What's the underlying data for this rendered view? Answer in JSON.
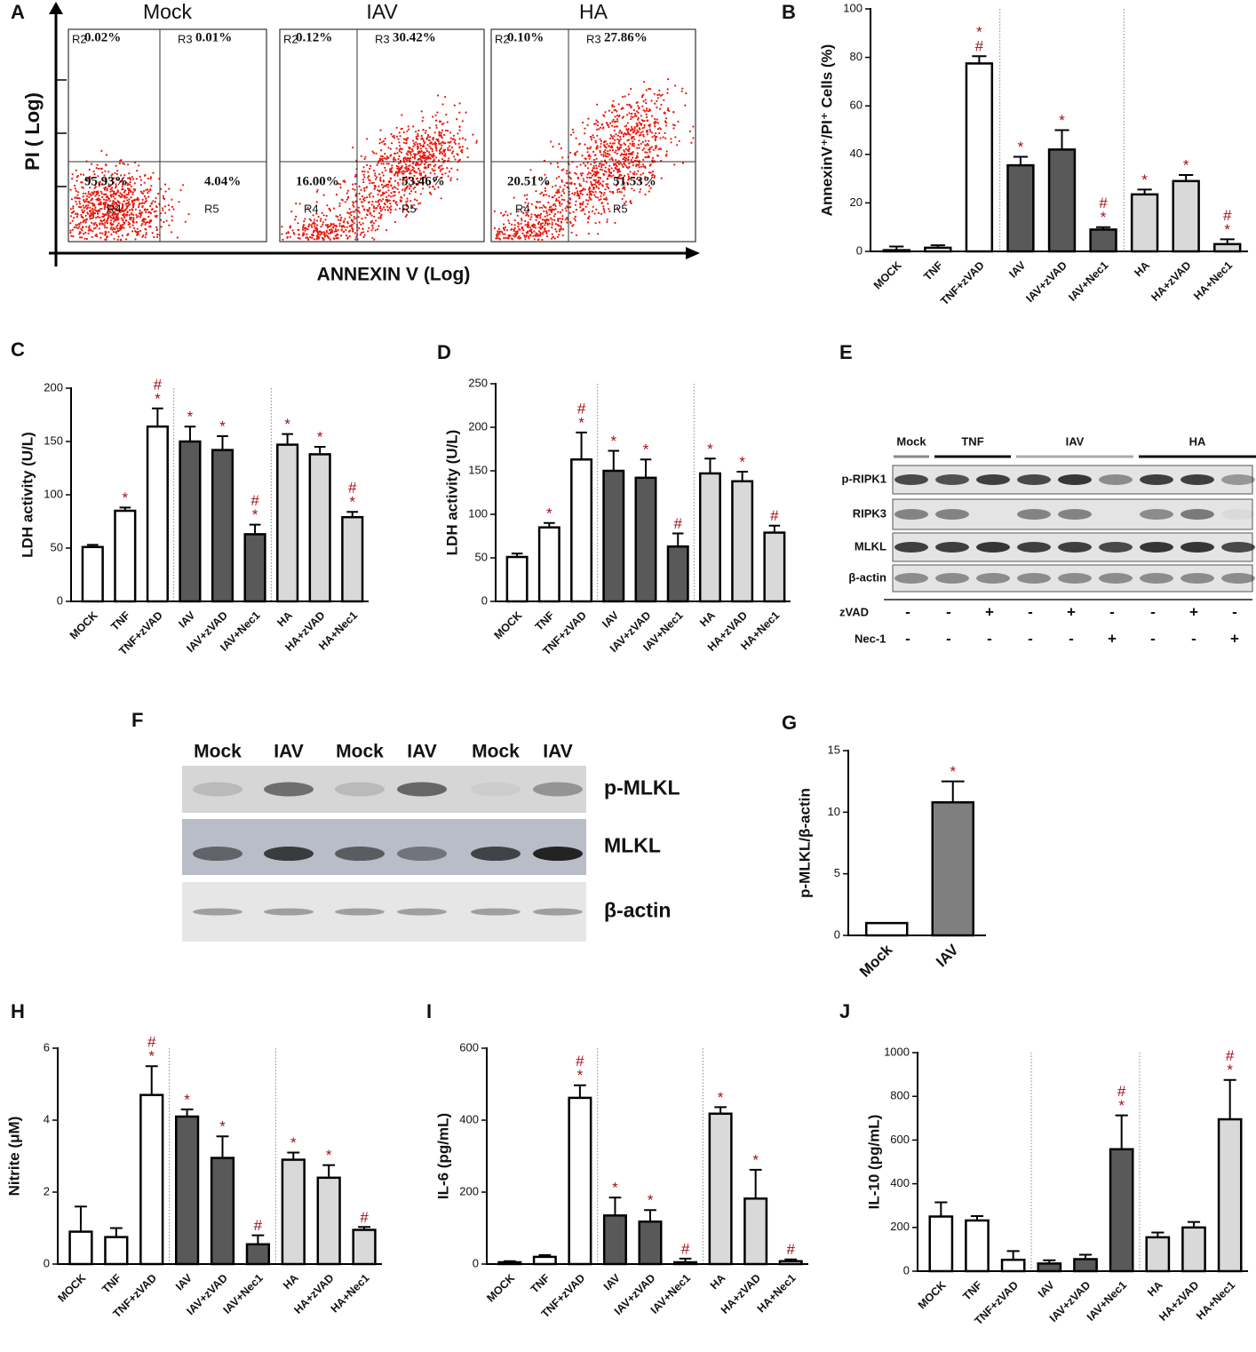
{
  "panel_labels": [
    "A",
    "B",
    "C",
    "D",
    "E",
    "F",
    "G",
    "H",
    "I",
    "J"
  ],
  "flow": {
    "ylabel": "PI ( Log)",
    "xlabel": "ANNEXIN V (Log)",
    "plots": [
      {
        "title": "Mock",
        "regions": [
          "R2",
          "R3",
          "R4",
          "R5"
        ],
        "percents": [
          "0.02%",
          "0.01%",
          "95.93%",
          "4.04%"
        ]
      },
      {
        "title": "IAV",
        "regions": [
          "R2",
          "R3",
          "R4",
          "R5"
        ],
        "percents": [
          "0.12%",
          "30.42%",
          "16.00%",
          "53.46%"
        ]
      },
      {
        "title": "HA",
        "regions": [
          "R2",
          "R3",
          "R4",
          "R5"
        ],
        "percents": [
          "0.10%",
          "27.86%",
          "20.51%",
          "51.53%"
        ]
      }
    ]
  },
  "blot_e": {
    "groups": [
      "Mock",
      "TNF",
      "IAV",
      "HA"
    ],
    "rows": [
      "p-RIPK1",
      "RIPK3",
      "MLKL",
      "β-actin"
    ],
    "treatments": [
      {
        "name": "zVAD",
        "signs": [
          "-",
          "-",
          "+",
          "-",
          "+",
          "-",
          "-",
          "+",
          "-"
        ]
      },
      {
        "name": "Nec-1",
        "signs": [
          "-",
          "-",
          "-",
          "-",
          "-",
          "+",
          "-",
          "-",
          "+"
        ]
      }
    ]
  },
  "blot_f": {
    "lanes": [
      "Mock",
      "IAV",
      "Mock",
      "IAV",
      "Mock",
      "IAV"
    ],
    "rows": [
      "p-MLKL",
      "MLKL",
      "β-actin"
    ]
  },
  "chart_data": [
    {
      "type": "bar",
      "ylabel": "AnnexinV⁺/PI⁺ Cells (%)",
      "categories": [
        "MOCK",
        "TNF",
        "TNF+zVAD",
        "IAV",
        "IAV+zVAD",
        "IAV+Nec1",
        "HA",
        "HA+zVAD",
        "HA+Nec1"
      ],
      "values": [
        0.5,
        1.5,
        77.5,
        35.5,
        42,
        9,
        23.5,
        29,
        3
      ],
      "errors": [
        1.5,
        1,
        3,
        3.5,
        8,
        1,
        2,
        2.5,
        2
      ],
      "colors": [
        "#ffffff",
        "#ffffff",
        "#ffffff",
        "#595959",
        "#595959",
        "#595959",
        "#d9d9d9",
        "#d9d9d9",
        "#d9d9d9"
      ],
      "annotations": [
        null,
        null,
        [
          "*",
          "#"
        ],
        [
          "*"
        ],
        [
          "*"
        ],
        [
          "#",
          "*"
        ],
        [
          "*"
        ],
        [
          "*"
        ],
        [
          "#",
          "*"
        ]
      ],
      "annotation_color": "#a50f15",
      "separators": true,
      "ylim": [
        0,
        100
      ],
      "yticks": [
        0,
        20,
        40,
        60,
        80,
        100
      ]
    },
    {
      "type": "bar",
      "ylabel": "LDH activity (U/L)",
      "categories": [
        "MOCK",
        "TNF",
        "TNF+zVAD",
        "IAV",
        "IAV+zVAD",
        "IAV+Nec1",
        "HA",
        "HA+zVAD",
        "HA+Nec1"
      ],
      "values": [
        51,
        85,
        164,
        150,
        142,
        63,
        147,
        138,
        79
      ],
      "errors": [
        2,
        3,
        17,
        14,
        13,
        9,
        10,
        7,
        5
      ],
      "colors": [
        "#ffffff",
        "#ffffff",
        "#ffffff",
        "#595959",
        "#595959",
        "#595959",
        "#d9d9d9",
        "#d9d9d9",
        "#d9d9d9"
      ],
      "annotations": [
        null,
        [
          "*"
        ],
        [
          "#",
          "*"
        ],
        [
          "*"
        ],
        [
          "*"
        ],
        [
          "#",
          "*"
        ],
        [
          "*"
        ],
        [
          "*"
        ],
        [
          "#",
          "*"
        ]
      ],
      "annotation_color": "#a50f15",
      "separators": true,
      "ylim": [
        0,
        200
      ],
      "yticks": [
        0,
        50,
        100,
        150,
        200
      ]
    },
    {
      "type": "bar",
      "ylabel": "LDH activity (U/L)",
      "categories": [
        "MOCK",
        "TNF",
        "TNF+zVAD",
        "IAV",
        "IAV+zVAD",
        "IAV+Nec1",
        "HA",
        "HA+zVAD",
        "HA+Nec1"
      ],
      "values": [
        51,
        85,
        163,
        150,
        142,
        63,
        147,
        138,
        79
      ],
      "errors": [
        4,
        5,
        31,
        23,
        21,
        15,
        17,
        11,
        8
      ],
      "colors": [
        "#ffffff",
        "#ffffff",
        "#ffffff",
        "#595959",
        "#595959",
        "#595959",
        "#d9d9d9",
        "#d9d9d9",
        "#d9d9d9"
      ],
      "annotations": [
        null,
        [
          "*"
        ],
        [
          "#",
          "*"
        ],
        [
          "*"
        ],
        [
          "*"
        ],
        [
          "#"
        ],
        [
          "*"
        ],
        [
          "*"
        ],
        [
          "#"
        ]
      ],
      "annotation_color": "#a50f15",
      "separators": true,
      "ylim": [
        0,
        250
      ],
      "yticks": [
        0,
        50,
        100,
        150,
        200,
        250
      ]
    },
    {
      "type": "bar",
      "ylabel": "p-MLKL/β-actin",
      "categories": [
        "Mock",
        "IAV"
      ],
      "values": [
        1,
        10.8
      ],
      "errors": [
        0,
        1.7
      ],
      "colors": [
        "#ffffff",
        "#7f7f7f"
      ],
      "annotations": [
        null,
        [
          "*"
        ]
      ],
      "annotation_color": "#a50f15",
      "separators": false,
      "ylim": [
        0,
        15
      ],
      "yticks": [
        0,
        5,
        10,
        15
      ]
    },
    {
      "type": "bar",
      "ylabel": "Nitrite (μM)",
      "categories": [
        "MOCK",
        "TNF",
        "TNF+zVAD",
        "IAV",
        "IAV+zVAD",
        "IAV+Nec1",
        "HA",
        "HA+zVAD",
        "HA+Nec1"
      ],
      "values": [
        0.9,
        0.75,
        4.7,
        4.1,
        2.95,
        0.55,
        2.9,
        2.4,
        0.95
      ],
      "errors": [
        0.7,
        0.25,
        0.8,
        0.2,
        0.6,
        0.25,
        0.2,
        0.35,
        0.08
      ],
      "colors": [
        "#ffffff",
        "#ffffff",
        "#ffffff",
        "#595959",
        "#595959",
        "#595959",
        "#d9d9d9",
        "#d9d9d9",
        "#d9d9d9"
      ],
      "annotations": [
        null,
        null,
        [
          "#",
          "*"
        ],
        [
          "*"
        ],
        [
          "*"
        ],
        [
          "#"
        ],
        [
          "*"
        ],
        [
          "*"
        ],
        [
          "#"
        ]
      ],
      "annotation_color": "#a50f15",
      "separators": true,
      "ylim": [
        0,
        6
      ],
      "yticks": [
        0,
        2,
        4,
        6
      ]
    },
    {
      "type": "bar",
      "ylabel": "IL-6 (pg/mL)",
      "categories": [
        "MOCK",
        "TNF",
        "TNF+zVAD",
        "IAV",
        "IAV+zVAD",
        "IAV+Nec1",
        "HA",
        "HA+zVAD",
        "HA+Nec1"
      ],
      "values": [
        5,
        20,
        462,
        135,
        118,
        5,
        418,
        182,
        8
      ],
      "errors": [
        3,
        5,
        35,
        50,
        32,
        10,
        18,
        80,
        5
      ],
      "colors": [
        "#ffffff",
        "#ffffff",
        "#ffffff",
        "#595959",
        "#595959",
        "#595959",
        "#d9d9d9",
        "#d9d9d9",
        "#d9d9d9"
      ],
      "annotations": [
        null,
        null,
        [
          "#",
          "*"
        ],
        [
          "*"
        ],
        [
          "*"
        ],
        [
          "#"
        ],
        [
          "*"
        ],
        [
          "*"
        ],
        [
          "#"
        ]
      ],
      "annotation_color": "#a50f15",
      "separators": true,
      "ylim": [
        0,
        600
      ],
      "yticks": [
        0,
        200,
        400,
        600
      ]
    },
    {
      "type": "bar",
      "ylabel": "IL-10 (pg/mL)",
      "categories": [
        "MOCK",
        "TNF",
        "TNF+zVAD",
        "IAV",
        "IAV+zVAD",
        "IAV+Nec1",
        "HA",
        "HA+zVAD",
        "HA+Nec1"
      ],
      "values": [
        250,
        232,
        52,
        35,
        55,
        558,
        155,
        200,
        695
      ],
      "errors": [
        65,
        20,
        40,
        15,
        20,
        155,
        22,
        25,
        180
      ],
      "colors": [
        "#ffffff",
        "#ffffff",
        "#ffffff",
        "#595959",
        "#595959",
        "#595959",
        "#d9d9d9",
        "#d9d9d9",
        "#d9d9d9"
      ],
      "annotations": [
        null,
        null,
        null,
        null,
        null,
        [
          "#",
          "*"
        ],
        null,
        null,
        [
          "#",
          "*"
        ]
      ],
      "annotation_color": "#a50f15",
      "separators": true,
      "ylim": [
        0,
        1000
      ],
      "yticks": [
        0,
        200,
        400,
        600,
        800,
        1000
      ]
    }
  ]
}
